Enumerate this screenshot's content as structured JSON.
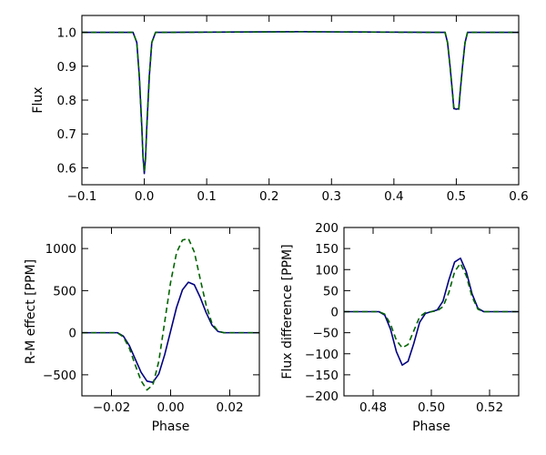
{
  "chart_data": [
    {
      "id": "light-curve",
      "type": "line",
      "title": "",
      "xlabel": "",
      "ylabel": "Flux",
      "xlim": [
        -0.1,
        0.6
      ],
      "ylim": [
        0.55,
        1.05
      ],
      "xticks": [
        -0.1,
        0.0,
        0.1,
        0.2,
        0.3,
        0.4,
        0.5,
        0.6
      ],
      "xtick_labels": [
        "−0.1",
        "0.0",
        "0.1",
        "0.2",
        "0.3",
        "0.4",
        "0.5",
        "0.6"
      ],
      "yticks": [
        0.6,
        0.7,
        0.8,
        0.9,
        1.0
      ],
      "ytick_labels": [
        "0.6",
        "0.7",
        "0.8",
        "0.9",
        "1.0"
      ],
      "grid": false,
      "series": [
        {
          "color": "#000080",
          "style": "solid",
          "x": [
            -0.1,
            -0.018,
            -0.012,
            -0.008,
            -0.004,
            -0.002,
            0.0,
            0.002,
            0.004,
            0.008,
            0.012,
            0.018,
            0.03,
            0.25,
            0.47,
            0.482,
            0.486,
            0.49,
            0.494,
            0.496,
            0.5,
            0.504,
            0.506,
            0.51,
            0.514,
            0.518,
            0.53,
            0.6
          ],
          "y": [
            1.0,
            1.0,
            0.97,
            0.87,
            0.72,
            0.63,
            0.583,
            0.63,
            0.72,
            0.87,
            0.97,
            1.0,
            1.0,
            1.002,
            1.0,
            1.0,
            0.97,
            0.9,
            0.82,
            0.775,
            0.773,
            0.775,
            0.82,
            0.9,
            0.97,
            1.0,
            1.0,
            1.0
          ]
        },
        {
          "color": "#006400",
          "style": "dashed",
          "x": [
            -0.1,
            -0.018,
            -0.012,
            -0.008,
            -0.004,
            -0.002,
            0.0,
            0.002,
            0.004,
            0.008,
            0.012,
            0.018,
            0.03,
            0.25,
            0.47,
            0.482,
            0.486,
            0.49,
            0.494,
            0.496,
            0.5,
            0.504,
            0.506,
            0.51,
            0.514,
            0.518,
            0.53,
            0.6
          ],
          "y": [
            1.0,
            1.0,
            0.97,
            0.87,
            0.72,
            0.633,
            0.59,
            0.626,
            0.72,
            0.87,
            0.97,
            1.0,
            1.0,
            1.002,
            1.0,
            1.0,
            0.97,
            0.9,
            0.82,
            0.778,
            0.775,
            0.773,
            0.82,
            0.9,
            0.97,
            1.0,
            1.0,
            1.0
          ]
        }
      ]
    },
    {
      "id": "rm-effect",
      "type": "line",
      "title": "",
      "xlabel": "Phase",
      "ylabel": "R-M effect [PPM]",
      "xlim": [
        -0.03,
        0.03
      ],
      "ylim": [
        -750,
        1250
      ],
      "xticks": [
        -0.02,
        0.0,
        0.02
      ],
      "xtick_labels": [
        "−0.02",
        "0.00",
        "0.02"
      ],
      "yticks": [
        -500,
        0,
        500,
        1000
      ],
      "ytick_labels": [
        "−500",
        "0",
        "500",
        "1000"
      ],
      "grid": false,
      "series": [
        {
          "color": "#000080",
          "style": "solid",
          "x": [
            -0.03,
            -0.018,
            -0.016,
            -0.014,
            -0.012,
            -0.01,
            -0.008,
            -0.006,
            -0.004,
            -0.002,
            0.0,
            0.002,
            0.004,
            0.006,
            0.008,
            0.01,
            0.012,
            0.014,
            0.016,
            0.018,
            0.03
          ],
          "y": [
            0,
            0,
            -40,
            -150,
            -310,
            -470,
            -575,
            -590,
            -490,
            -260,
            20,
            300,
            510,
            600,
            570,
            420,
            240,
            90,
            15,
            0,
            0
          ]
        },
        {
          "color": "#006400",
          "style": "dashed",
          "x": [
            -0.03,
            -0.018,
            -0.016,
            -0.014,
            -0.012,
            -0.01,
            -0.008,
            -0.006,
            -0.004,
            -0.002,
            0.0,
            0.002,
            0.004,
            0.006,
            0.008,
            0.01,
            0.012,
            0.014,
            0.016,
            0.018,
            0.03
          ],
          "y": [
            0,
            0,
            -50,
            -180,
            -380,
            -570,
            -680,
            -620,
            -340,
            130,
            600,
            950,
            1100,
            1120,
            960,
            640,
            330,
            110,
            20,
            0,
            0
          ]
        }
      ]
    },
    {
      "id": "flux-difference",
      "type": "line",
      "title": "",
      "xlabel": "Phase",
      "ylabel": "Flux difference [PPM]",
      "xlim": [
        0.47,
        0.53
      ],
      "ylim": [
        -200,
        200
      ],
      "xticks": [
        0.48,
        0.5,
        0.52
      ],
      "xtick_labels": [
        "0.48",
        "0.50",
        "0.52"
      ],
      "yticks": [
        -200,
        -150,
        -100,
        -50,
        0,
        50,
        100,
        150,
        200
      ],
      "ytick_labels": [
        "−200",
        "−150",
        "−100",
        "−50",
        "0",
        "50",
        "100",
        "150",
        "200"
      ],
      "grid": false,
      "series": [
        {
          "color": "#000080",
          "style": "solid",
          "x": [
            0.47,
            0.482,
            0.484,
            0.486,
            0.488,
            0.49,
            0.492,
            0.494,
            0.496,
            0.498,
            0.5,
            0.502,
            0.504,
            0.506,
            0.508,
            0.51,
            0.512,
            0.514,
            0.516,
            0.518,
            0.53
          ],
          "y": [
            0,
            0,
            -8,
            -42,
            -95,
            -127,
            -118,
            -75,
            -25,
            -4,
            0,
            4,
            25,
            75,
            118,
            127,
            95,
            42,
            8,
            0,
            0
          ]
        },
        {
          "color": "#006400",
          "style": "dashed",
          "x": [
            0.47,
            0.482,
            0.484,
            0.486,
            0.488,
            0.49,
            0.492,
            0.494,
            0.496,
            0.498,
            0.5,
            0.502,
            0.504,
            0.506,
            0.508,
            0.51,
            0.512,
            0.514,
            0.516,
            0.518,
            0.53
          ],
          "y": [
            0,
            0,
            -6,
            -30,
            -68,
            -86,
            -78,
            -45,
            -12,
            -2,
            0,
            2,
            12,
            45,
            95,
            115,
            85,
            35,
            6,
            0,
            0
          ]
        }
      ]
    }
  ]
}
